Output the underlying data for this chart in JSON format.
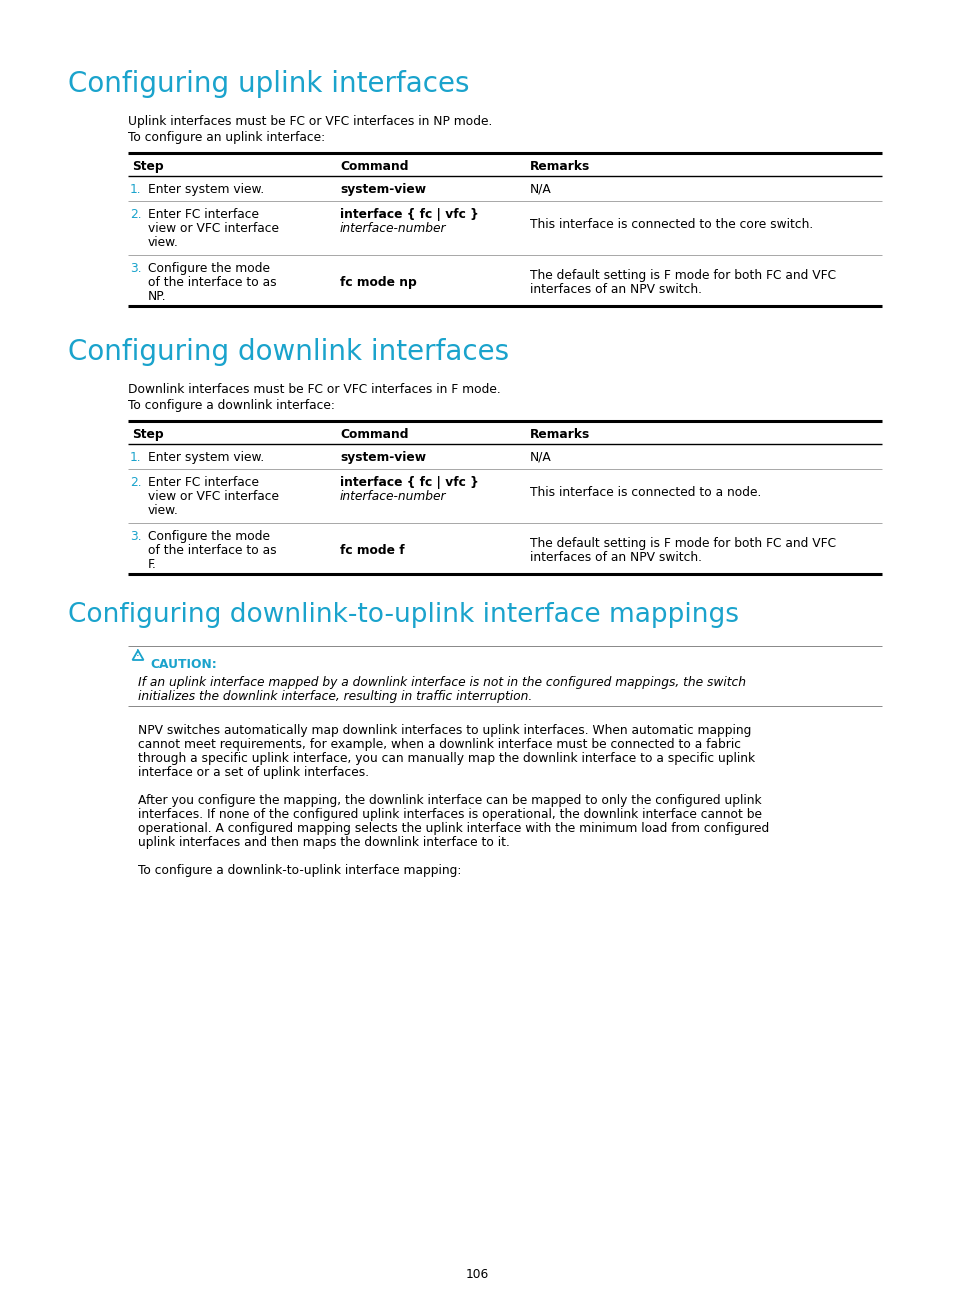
{
  "bg_color": "#ffffff",
  "text_color": "#000000",
  "heading_color": "#1aa3cc",
  "caution_color": "#1aa3cc",
  "page_number": "106",
  "section1_title": "Configuring uplink interfaces",
  "section1_intro1": "Uplink interfaces must be FC or VFC interfaces in NP mode.",
  "section1_intro2": "To configure an uplink interface:",
  "table_headers": [
    "Step",
    "Command",
    "Remarks"
  ],
  "section2_title": "Configuring downlink interfaces",
  "section2_intro1": "Downlink interfaces must be FC or VFC interfaces in F mode.",
  "section2_intro2": "To configure a downlink interface:",
  "section3_title": "Configuring downlink-to-uplink interface mappings",
  "caution_label": "CAUTION:",
  "caution_line1": "If an uplink interface mapped by a downlink interface is not in the configured mappings, the switch",
  "caution_line2": "initializes the downlink interface, resulting in traffic interruption.",
  "para1_lines": [
    "NPV switches automatically map downlink interfaces to uplink interfaces. When automatic mapping",
    "cannot meet requirements, for example, when a downlink interface must be connected to a fabric",
    "through a specific uplink interface, you can manually map the downlink interface to a specific uplink",
    "interface or a set of uplink interfaces."
  ],
  "para2_lines": [
    "After you configure the mapping, the downlink interface can be mapped to only the configured uplink",
    "interfaces. If none of the configured uplink interfaces is operational, the downlink interface cannot be",
    "operational. A configured mapping selects the uplink interface with the minimum load from configured",
    "uplink interfaces and then maps the downlink interface to it."
  ],
  "para3": "To configure a downlink-to-uplink interface mapping:"
}
